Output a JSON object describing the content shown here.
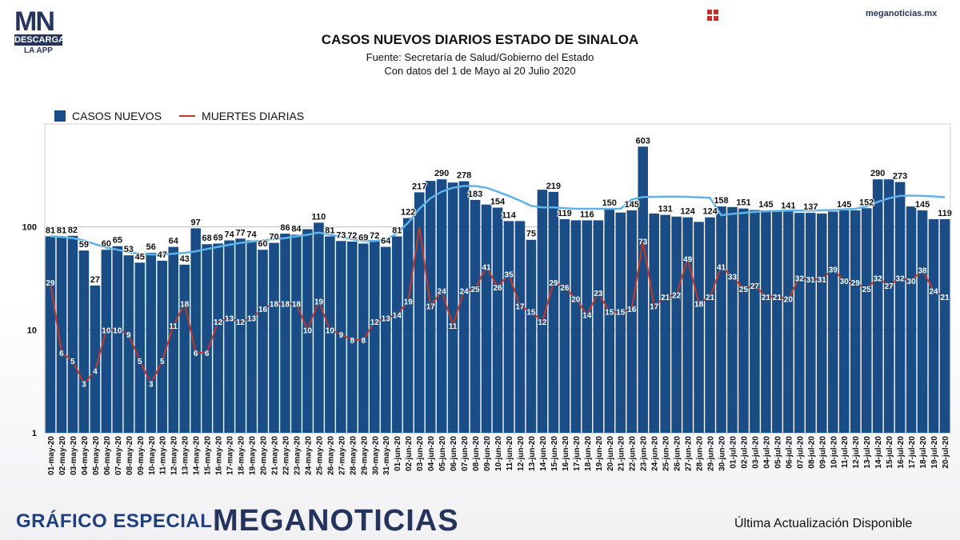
{
  "header": {
    "logo_mn": "MN",
    "logo_descarga": "DESCARGA",
    "logo_app": "LA APP",
    "site": "meganoticias.mx"
  },
  "footer": {
    "left": "GRÁFICO ESPECIAL",
    "brand": "MEGANOTICIAS",
    "right": "Última Actualización Disponible"
  },
  "colors": {
    "bars": "#1a4d86",
    "deaths": "#c0392b",
    "average": "#5fb3ea"
  },
  "chart_data": {
    "type": "bar",
    "title": "CASOS NUEVOS DIARIOS ESTADO DE SINALOA",
    "subtitle": [
      "Fuente: Secretaría de Salud/Gobierno del Estado",
      "Con datos del 1 de Mayo al 20 Julio 2020"
    ],
    "yscale": "log",
    "ylim": [
      1,
      1000
    ],
    "yticks": [
      "1",
      "10",
      "100"
    ],
    "legend": "top-left",
    "categories": [
      "01-may-20",
      "02-may-20",
      "03-may-20",
      "04-may-20",
      "05-may-20",
      "06-may-20",
      "07-may-20",
      "08-may-20",
      "09-may-20",
      "10-may-20",
      "11-may-20",
      "12-may-20",
      "13-may-20",
      "14-may-20",
      "15-may-20",
      "16-may-20",
      "17-may-20",
      "18-may-20",
      "19-may-20",
      "20-may-20",
      "21-may-20",
      "22-may-20",
      "23-may-20",
      "24-may-20",
      "25-may-20",
      "26-may-20",
      "27-may-20",
      "28-may-20",
      "29-may-20",
      "30-may-20",
      "31-may-20",
      "01-jun-20",
      "02-jun-20",
      "03-jun-20",
      "04-jun-20",
      "05-jun-20",
      "06-jun-20",
      "07-jun-20",
      "08-jun-20",
      "09-jun-20",
      "10-jun-20",
      "11-jun-20",
      "12-jun-20",
      "13-jun-20",
      "14-jun-20",
      "15-jun-20",
      "16-jun-20",
      "17-jun-20",
      "18-jun-20",
      "19-jun-20",
      "20-jun-20",
      "21-jun-20",
      "22-jun-20",
      "23-jun-20",
      "24-jun-20",
      "25-jun-20",
      "26-jun-20",
      "27-jun-20",
      "28-jun-20",
      "29-jun-20",
      "30-jun-20",
      "01-jul-20",
      "02-jul-20",
      "03-jul-20",
      "04-jul-20",
      "05-jul-20",
      "06-jul-20",
      "07-jul-20",
      "08-jul-20",
      "09-jul-20",
      "10-jul-20",
      "11-jul-20",
      "12-jul-20",
      "13-jul-20",
      "14-jul-20",
      "15-jul-20",
      "16-jul-20",
      "17-jul-20",
      "18-jul-20",
      "19-jul-20",
      "20-jul-20"
    ],
    "series": [
      {
        "name": "CASOS NUEVOS",
        "kind": "bar",
        "values": [
          81,
          81,
          82,
          59,
          27,
          60,
          65,
          53,
          45,
          56,
          47,
          64,
          43,
          97,
          68,
          69,
          74,
          77,
          74,
          60,
          70,
          86,
          84,
          95,
          110,
          81,
          73,
          72,
          69,
          72,
          64,
          81,
          122,
          217,
          280,
          290,
          270,
          278,
          183,
          165,
          154,
          114,
          114,
          75,
          230,
          219,
          119,
          116,
          116,
          116,
          150,
          138,
          145,
          603,
          135,
          131,
          126,
          124,
          112,
          124,
          158,
          156,
          151,
          146,
          145,
          143,
          141,
          137,
          137,
          135,
          141,
          145,
          145,
          152,
          290,
          290,
          273,
          158,
          145,
          119,
          119
        ],
        "labels": [
          "81",
          "81",
          "82",
          "59",
          "27",
          "60",
          "65",
          "53",
          "45",
          "56",
          "47",
          "64",
          "43",
          "97",
          "68",
          "69",
          "74",
          "77",
          "74",
          "60",
          "70",
          "86",
          "84",
          "",
          "110",
          "81",
          "73",
          "72",
          "69",
          "72",
          "64",
          "81",
          "122",
          "217",
          "",
          "290",
          "",
          "278",
          "183",
          "",
          "154",
          "114",
          "",
          "75",
          "",
          "219",
          "119",
          "",
          "116",
          "",
          "150",
          "",
          "145",
          "603",
          "",
          "131",
          "",
          "124",
          "",
          "124",
          "158",
          "",
          "151",
          "",
          "145",
          "",
          "141",
          "",
          "137",
          "",
          "",
          "145",
          "",
          "152",
          "290",
          "",
          "273",
          "",
          "145",
          "",
          "119"
        ]
      },
      {
        "name": "MUERTES DIARIAS",
        "kind": "line",
        "values": [
          29,
          6,
          5,
          3,
          4,
          10,
          10,
          9,
          5,
          3,
          5,
          11,
          18,
          6,
          6,
          12,
          13,
          12,
          13,
          16,
          18,
          18,
          18,
          10,
          19,
          10,
          9,
          8,
          8,
          12,
          13,
          14,
          19,
          100,
          17,
          24,
          11,
          24,
          25,
          41,
          26,
          35,
          17,
          15,
          12,
          29,
          26,
          20,
          14,
          23,
          15,
          15,
          16,
          73,
          17,
          21,
          22,
          49,
          18,
          21,
          41,
          33,
          25,
          27,
          21,
          21,
          20,
          32,
          31,
          31,
          39,
          30,
          29,
          25,
          32,
          27,
          32,
          30,
          38,
          24,
          21
        ],
        "labels": [
          "29",
          "6",
          "5",
          "3",
          "4",
          "10",
          "10",
          "9",
          "5",
          "3",
          "5",
          "11",
          "18",
          "6",
          "6",
          "12",
          "13",
          "12",
          "13",
          "16",
          "18",
          "18",
          "18",
          "10",
          "19",
          "10",
          "9",
          "8",
          "8",
          "12",
          "13",
          "14",
          "19",
          "",
          "17",
          "24",
          "11",
          "24",
          "25",
          "41",
          "26",
          "35",
          "17",
          "15",
          "12",
          "29",
          "26",
          "20",
          "14",
          "23",
          "15",
          "15",
          "16",
          "73",
          "17",
          "21",
          "22",
          "49",
          "18",
          "21",
          "41",
          "33",
          "25",
          "27",
          "21",
          "21",
          "20",
          "32",
          "31",
          "31",
          "39",
          "30",
          "29",
          "25",
          "32",
          "27",
          "32",
          "30",
          "38",
          "24",
          "21"
        ]
      },
      {
        "kind": "smooth",
        "values": [
          81,
          80,
          78,
          74,
          68,
          63,
          60,
          57,
          55,
          54,
          54,
          55,
          56,
          58,
          61,
          64,
          67,
          70,
          72,
          74,
          76,
          78,
          81,
          84,
          88,
          84,
          80,
          76,
          73,
          73,
          76,
          86,
          110,
          150,
          190,
          220,
          240,
          250,
          250,
          240,
          220,
          200,
          180,
          160,
          155,
          155,
          152,
          150,
          150,
          150,
          150,
          150,
          185,
          195,
          196,
          197,
          197,
          196,
          194,
          192,
          130,
          134,
          137,
          140,
          142,
          143,
          144,
          144,
          144,
          145,
          146,
          148,
          150,
          158,
          175,
          190,
          200,
          202,
          200,
          198,
          194
        ]
      }
    ]
  }
}
